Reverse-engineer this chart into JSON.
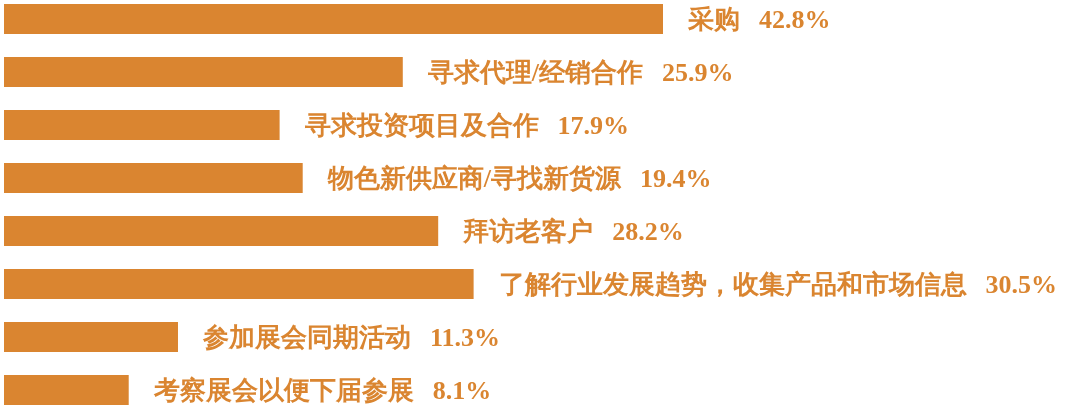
{
  "chart_data": {
    "type": "bar",
    "orientation": "horizontal",
    "tick_labels": false,
    "categories": [
      null,
      null,
      null,
      null,
      null,
      null,
      null,
      null
    ],
    "values": [
      42.8,
      25.9,
      17.9,
      19.4,
      28.2,
      30.5,
      11.3,
      8.1
    ],
    "value_labels": [
      "采购  42.8%",
      "寻求代理/经销合作  25.9%",
      "寻求投资项目及合作  17.9%",
      "物色新供应商/寻找新货源  19.4%",
      "拜访老客户  28.2%",
      "了解行业发展趋势，收集产品和市场信息  30.5%",
      "参加展会同期活动  11.3%",
      "考察展会以便下届参展  8.1%"
    ],
    "color": "#da8530"
  }
}
